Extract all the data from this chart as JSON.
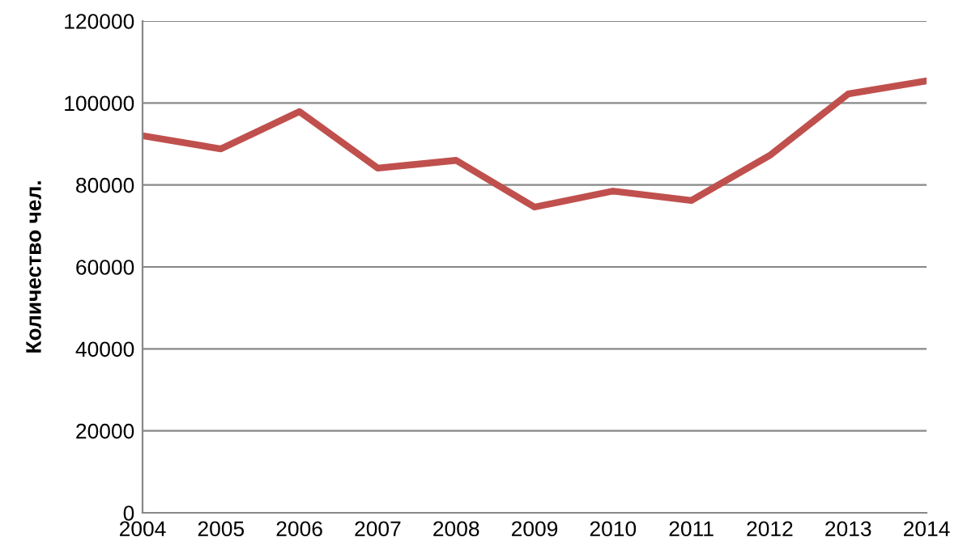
{
  "chart_data": {
    "type": "line",
    "ylabel": "Количество чел.",
    "x": [
      2004,
      2005,
      2006,
      2007,
      2008,
      2009,
      2010,
      2011,
      2012,
      2013,
      2014
    ],
    "series": [
      {
        "color": "#c0504d",
        "values": [
          92000,
          88800,
          97900,
          84100,
          86000,
          74600,
          78500,
          76200,
          87200,
          102200,
          105400
        ]
      }
    ],
    "xlim": [
      2004,
      2014
    ],
    "xticks": [
      2004,
      2005,
      2006,
      2007,
      2008,
      2009,
      2010,
      2011,
      2012,
      2013,
      2014
    ],
    "ylim": [
      0,
      120000
    ],
    "yticks": [
      0,
      20000,
      40000,
      60000,
      80000,
      100000,
      120000
    ],
    "grid": "y",
    "legend": false,
    "marker": "none",
    "line_style": "solid"
  }
}
